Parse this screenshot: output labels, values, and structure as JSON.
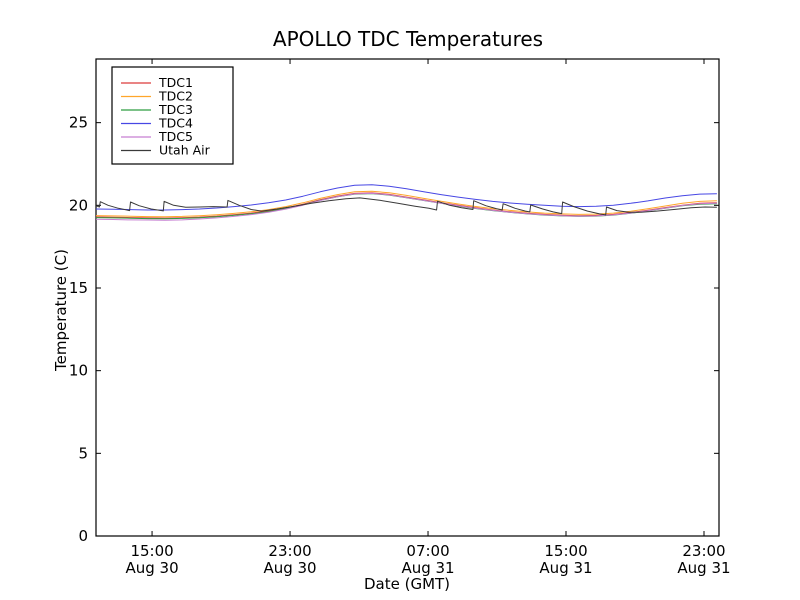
{
  "chart_data": {
    "type": "line",
    "title": "APOLLO TDC Temperatures",
    "xlabel": "Date (GMT)",
    "ylabel": "Temperature (C)",
    "grid": false,
    "legend_position": "upper left",
    "xlim_hours": [
      0,
      36.12
    ],
    "ylim": [
      0,
      28.85
    ],
    "yticks": [
      0,
      5,
      10,
      15,
      20,
      25
    ],
    "xticks": [
      {
        "h": 3.25,
        "time": "15:00",
        "date": "Aug 30"
      },
      {
        "h": 11.25,
        "time": "23:00",
        "date": "Aug 30"
      },
      {
        "h": 19.25,
        "time": "07:00",
        "date": "Aug 31"
      },
      {
        "h": 27.25,
        "time": "15:00",
        "date": "Aug 31"
      },
      {
        "h": 35.25,
        "time": "23:00",
        "date": "Aug 31"
      }
    ],
    "x_grid_hours": [
      0,
      1,
      2,
      3,
      4,
      5,
      6,
      7,
      8,
      9,
      10,
      11,
      12,
      13,
      14,
      15,
      16,
      17,
      18,
      19,
      20,
      21,
      22,
      23,
      24,
      25,
      26,
      27,
      28,
      29,
      30,
      31,
      32,
      33,
      34,
      35,
      36
    ],
    "series": [
      {
        "name": "TDC1",
        "color": "#dc3a3a",
        "y": [
          19.3,
          19.28,
          19.26,
          19.24,
          19.23,
          19.25,
          19.29,
          19.35,
          19.43,
          19.53,
          19.66,
          19.84,
          20.07,
          20.34,
          20.56,
          20.72,
          20.75,
          20.66,
          20.5,
          20.33,
          20.16,
          20.0,
          19.85,
          19.72,
          19.61,
          19.52,
          19.45,
          19.4,
          19.37,
          19.39,
          19.45,
          19.56,
          19.7,
          19.86,
          20.01,
          20.12,
          20.15
        ]
      },
      {
        "name": "TDC2",
        "color": "#ffa62b",
        "y": [
          19.38,
          19.36,
          19.34,
          19.32,
          19.31,
          19.33,
          19.37,
          19.43,
          19.51,
          19.61,
          19.74,
          19.92,
          20.15,
          20.42,
          20.65,
          20.82,
          20.85,
          20.76,
          20.6,
          20.42,
          20.25,
          20.08,
          19.93,
          19.8,
          19.69,
          19.6,
          19.53,
          19.48,
          19.45,
          19.47,
          19.53,
          19.64,
          19.79,
          19.96,
          20.12,
          20.24,
          20.28
        ]
      },
      {
        "name": "TDC3",
        "color": "#2f9e41",
        "y": [
          19.26,
          19.24,
          19.22,
          19.2,
          19.19,
          19.21,
          19.25,
          19.31,
          19.39,
          19.49,
          19.62,
          19.8,
          20.03,
          20.3,
          20.52,
          20.68,
          20.71,
          20.62,
          20.46,
          20.29,
          20.12,
          19.96,
          19.81,
          19.68,
          19.57,
          19.48,
          19.41,
          19.36,
          19.33,
          19.35,
          19.41,
          19.52,
          19.66,
          19.82,
          19.97,
          20.07,
          20.09
        ]
      },
      {
        "name": "TDC4",
        "color": "#4747e4",
        "y": [
          19.78,
          19.76,
          19.74,
          19.72,
          19.72,
          19.74,
          19.78,
          19.84,
          19.92,
          20.02,
          20.15,
          20.32,
          20.55,
          20.82,
          21.05,
          21.22,
          21.25,
          21.15,
          21.0,
          20.82,
          20.65,
          20.5,
          20.36,
          20.24,
          20.14,
          20.06,
          20.0,
          19.95,
          19.92,
          19.94,
          20.0,
          20.12,
          20.27,
          20.44,
          20.58,
          20.68,
          20.7
        ]
      },
      {
        "name": "TDC5",
        "color": "#c67fd2",
        "y": [
          19.16,
          19.14,
          19.12,
          19.11,
          19.1,
          19.12,
          19.17,
          19.24,
          19.33,
          19.44,
          19.58,
          19.77,
          20.01,
          20.29,
          20.52,
          20.69,
          20.72,
          20.63,
          20.47,
          20.3,
          20.13,
          19.97,
          19.82,
          19.69,
          19.58,
          19.49,
          19.42,
          19.37,
          19.34,
          19.36,
          19.42,
          19.53,
          19.67,
          19.83,
          19.99,
          20.1,
          20.12
        ]
      },
      {
        "name": "Utah Air",
        "color": "#3a3a3a",
        "xy": [
          [
            0,
            19.98
          ],
          [
            0.2,
            19.9
          ],
          [
            0.25,
            20.22
          ],
          [
            0.7,
            20.0
          ],
          [
            1.3,
            19.82
          ],
          [
            1.95,
            19.68
          ],
          [
            2.0,
            20.2
          ],
          [
            2.5,
            19.98
          ],
          [
            3.2,
            19.78
          ],
          [
            3.9,
            19.66
          ],
          [
            3.95,
            20.24
          ],
          [
            4.5,
            20.0
          ],
          [
            5.2,
            19.88
          ],
          [
            6.0,
            19.9
          ],
          [
            6.8,
            19.92
          ],
          [
            7.6,
            19.9
          ],
          [
            7.65,
            20.3
          ],
          [
            8.3,
            20.0
          ],
          [
            9.0,
            19.75
          ],
          [
            9.6,
            19.65
          ],
          [
            10.5,
            19.78
          ],
          [
            11.5,
            19.95
          ],
          [
            12.5,
            20.12
          ],
          [
            13.5,
            20.28
          ],
          [
            14.5,
            20.4
          ],
          [
            15.3,
            20.45
          ],
          [
            16.5,
            20.3
          ],
          [
            17.5,
            20.12
          ],
          [
            18.5,
            19.95
          ],
          [
            19.3,
            19.82
          ],
          [
            19.75,
            19.72
          ],
          [
            19.8,
            20.25
          ],
          [
            20.5,
            20.0
          ],
          [
            21.2,
            19.85
          ],
          [
            21.85,
            19.75
          ],
          [
            21.9,
            20.28
          ],
          [
            22.6,
            19.98
          ],
          [
            23.2,
            19.8
          ],
          [
            23.55,
            19.72
          ],
          [
            23.6,
            20.1
          ],
          [
            24.3,
            19.82
          ],
          [
            24.9,
            19.65
          ],
          [
            25.15,
            19.6
          ],
          [
            25.2,
            20.02
          ],
          [
            25.9,
            19.78
          ],
          [
            26.5,
            19.6
          ],
          [
            27.0,
            19.5
          ],
          [
            27.05,
            20.2
          ],
          [
            27.7,
            19.92
          ],
          [
            28.5,
            19.65
          ],
          [
            29.2,
            19.48
          ],
          [
            29.55,
            19.42
          ],
          [
            29.6,
            19.9
          ],
          [
            30.2,
            19.68
          ],
          [
            30.9,
            19.58
          ],
          [
            31.6,
            19.58
          ],
          [
            32.5,
            19.65
          ],
          [
            33.5,
            19.75
          ],
          [
            34.5,
            19.85
          ],
          [
            35.3,
            19.9
          ],
          [
            36,
            19.88
          ]
        ]
      }
    ]
  }
}
